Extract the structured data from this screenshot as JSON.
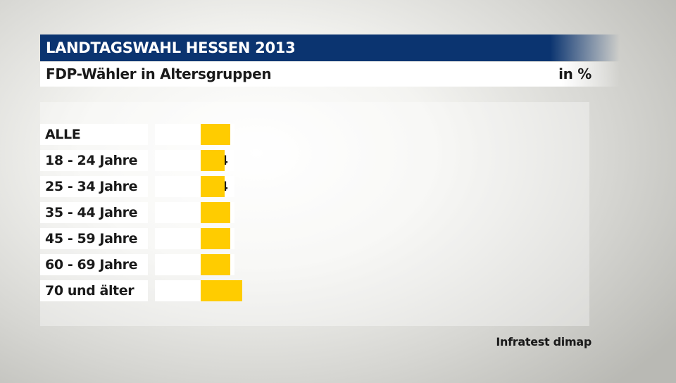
{
  "header": {
    "title": "LANDTAGSWAHL HESSEN 2013",
    "subtitle": "FDP-Wähler in Altersgruppen",
    "unit": "in %"
  },
  "source": "Infratest dimap",
  "colors": {
    "title_bg": "#0b3470",
    "bar": "#ffcc00"
  },
  "chart_data": {
    "type": "bar",
    "orientation": "horizontal",
    "title": "LANDTAGSWAHL HESSEN 2013",
    "subtitle": "FDP-Wähler in Altersgruppen",
    "unit": "in %",
    "categories": [
      "ALLE",
      "18 - 24 Jahre",
      "25 - 34 Jahre",
      "35 - 44 Jahre",
      "45 - 59 Jahre",
      "60 - 69 Jahre",
      "70 und älter"
    ],
    "values": [
      5,
      4,
      4,
      5,
      5,
      5,
      7
    ],
    "value_labels": [
      "5",
      "4",
      "4",
      "5",
      "5",
      "5",
      "7"
    ],
    "xlim": [
      0,
      100
    ]
  }
}
